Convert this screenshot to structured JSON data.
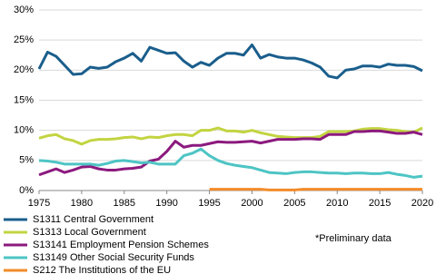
{
  "chart_data": {
    "type": "line",
    "x": [
      1975,
      1976,
      1977,
      1978,
      1979,
      1980,
      1981,
      1982,
      1983,
      1984,
      1985,
      1986,
      1987,
      1988,
      1989,
      1990,
      1991,
      1992,
      1993,
      1994,
      1995,
      1996,
      1997,
      1998,
      1999,
      2000,
      2001,
      2002,
      2003,
      2004,
      2005,
      2006,
      2007,
      2008,
      2009,
      2010,
      2011,
      2012,
      2013,
      2014,
      2015,
      2016,
      2017,
      2018,
      2019,
      2020
    ],
    "xlim": [
      1975,
      2020
    ],
    "xticks": [
      1975,
      1980,
      1985,
      1990,
      1995,
      2000,
      2005,
      2010,
      2015,
      2020
    ],
    "ylim": [
      0,
      30
    ],
    "yticks": [
      {
        "value": 0,
        "label": "0%"
      },
      {
        "value": 5,
        "label": "5%"
      },
      {
        "value": 10,
        "label": "10%"
      },
      {
        "value": 15,
        "label": "15%"
      },
      {
        "value": 20,
        "label": "20%"
      },
      {
        "value": 25,
        "label": "25%"
      },
      {
        "value": 30,
        "label": "30%"
      }
    ],
    "grid": true,
    "annotation": "*Preliminary data",
    "series": [
      {
        "name": "S1311 Central Government",
        "color": "#1a5e8c",
        "values": [
          20.2,
          23,
          22.3,
          20.8,
          19.3,
          19.4,
          20.5,
          20.3,
          20.5,
          21.4,
          22,
          22.8,
          21.5,
          23.8,
          23.3,
          22.8,
          22.9,
          21.5,
          20.5,
          21.3,
          20.8,
          22,
          22.8,
          22.8,
          22.5,
          24.2,
          22,
          22.6,
          22.2,
          22,
          22,
          21.7,
          21.2,
          20.5,
          19,
          18.7,
          20,
          20.2,
          20.7,
          20.7,
          20.5,
          21,
          20.8,
          20.8,
          20.6,
          19.9
        ]
      },
      {
        "name": "S1313 Local Government",
        "color": "#c2d440",
        "values": [
          8.7,
          9.1,
          9.3,
          8.6,
          8.3,
          7.7,
          8.3,
          8.5,
          8.5,
          8.6,
          8.8,
          8.9,
          8.6,
          8.9,
          8.8,
          9.1,
          9.3,
          9.3,
          9.1,
          10,
          10,
          10.4,
          9.9,
          9.9,
          9.7,
          10,
          9.6,
          9.3,
          9,
          8.9,
          8.8,
          8.8,
          8.8,
          9,
          9.8,
          9.8,
          9.8,
          9.9,
          10.2,
          10.3,
          10.3,
          10.1,
          10,
          9.8,
          9.7,
          10.4
        ]
      },
      {
        "name": "S13141 Employment Pension Schemes",
        "color": "#8c1a7e",
        "values": [
          2.6,
          3.1,
          3.6,
          3,
          3.4,
          3.9,
          4,
          3.6,
          3.4,
          3.4,
          3.6,
          3.7,
          3.9,
          4.9,
          5.2,
          6.5,
          8.2,
          7.2,
          7.5,
          7.5,
          7.8,
          8.1,
          8,
          8,
          8.1,
          8.2,
          7.9,
          8.2,
          8.5,
          8.5,
          8.5,
          8.6,
          8.6,
          8.5,
          9.3,
          9.3,
          9.3,
          9.8,
          9.8,
          9.9,
          9.9,
          9.7,
          9.5,
          9.5,
          9.7,
          9.3
        ]
      },
      {
        "name": "S13149 Other Social Security Funds",
        "color": "#4ec4c4",
        "values": [
          5,
          4.9,
          4.7,
          4.4,
          4.4,
          4.4,
          4.4,
          4.2,
          4.5,
          4.9,
          5,
          4.8,
          4.6,
          4.7,
          4.4,
          4.4,
          4.4,
          5.8,
          6.2,
          6.9,
          5.8,
          5,
          4.5,
          4.2,
          4,
          3.8,
          3.4,
          3,
          2.9,
          2.8,
          3,
          3.1,
          3.1,
          3,
          2.9,
          2.9,
          2.8,
          2.9,
          2.9,
          2.8,
          2.8,
          3,
          2.7,
          2.5,
          2.2,
          2.4
        ]
      },
      {
        "name": "S212 The Institutions of the EU",
        "color": "#f28b2a",
        "values": [
          null,
          null,
          null,
          null,
          null,
          null,
          null,
          null,
          null,
          null,
          null,
          null,
          null,
          null,
          null,
          null,
          null,
          null,
          null,
          null,
          0.2,
          0.2,
          0.2,
          0.2,
          0.2,
          0.2,
          0.2,
          0.1,
          0.1,
          0.1,
          0.1,
          0.2,
          0.2,
          0.2,
          0.2,
          0.2,
          0.2,
          0.2,
          0.2,
          0.2,
          0.2,
          0.2,
          0.2,
          0.2,
          0.2,
          0.2
        ]
      }
    ]
  }
}
